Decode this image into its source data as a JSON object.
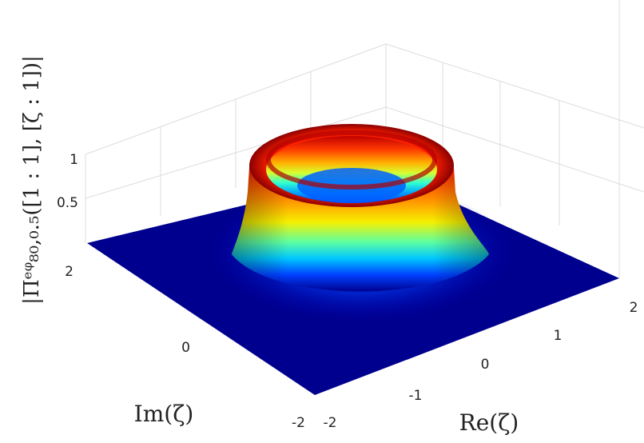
{
  "chart_data": {
    "type": "surface",
    "title": "",
    "xlabel": "Re(ζ)",
    "ylabel": "Im(ζ)",
    "zlabel": "|Πᵉᵠ₈₀,₀.₅([1 : 1], [ζ : 1])|",
    "xlim": [
      -2,
      2
    ],
    "ylim": [
      -2,
      2
    ],
    "zlim": [
      0,
      1
    ],
    "x_ticks": [
      "-2",
      "-1",
      "0",
      "1",
      "2"
    ],
    "y_ticks": [
      "-2",
      "0",
      "2"
    ],
    "z_ticks": [
      "0.5",
      "1"
    ],
    "colormap": "jet",
    "grid": true,
    "surface": {
      "description_free": true,
      "shape": "ring",
      "peak_radius": 0.9,
      "inner_level": 0.15,
      "outer_level": 0.0,
      "peak_value": 1.0
    }
  }
}
